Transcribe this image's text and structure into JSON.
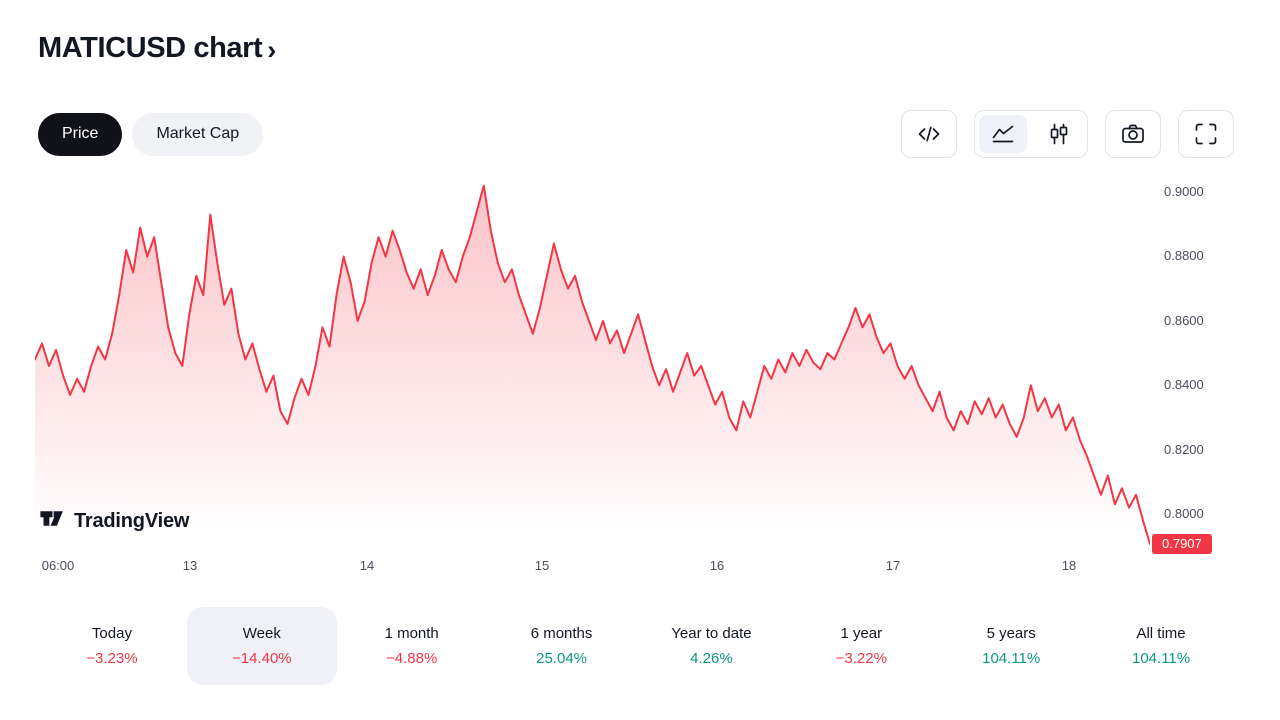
{
  "header": {
    "title": "MATICUSD chart",
    "chevron": "›"
  },
  "toolbar": {
    "price_label": "Price",
    "market_cap_label": "Market Cap",
    "icons": [
      "code-icon",
      "area-chart-icon",
      "candlestick-icon",
      "camera-icon",
      "fullscreen-icon"
    ],
    "selected_chart_type": "area"
  },
  "watermark": {
    "brand": "TradingView"
  },
  "chart_data": {
    "type": "area",
    "title": "MATICUSD",
    "xlabel": "",
    "ylabel": "",
    "grid": false,
    "legend": false,
    "line_color": "#f23645",
    "fill_color": "#f23645",
    "up_color": "#089981",
    "down_color": "#f23645",
    "ylim": [
      0.7873,
      0.9053
    ],
    "y_ticks": [
      "0.9000",
      "0.8800",
      "0.8600",
      "0.8400",
      "0.8200",
      "0.8000"
    ],
    "y_tick_values": [
      0.9,
      0.88,
      0.86,
      0.84,
      0.82,
      0.8
    ],
    "x_ticks": [
      "06:00",
      "13",
      "14",
      "15",
      "16",
      "17",
      "18"
    ],
    "last_price": 0.7907,
    "last_price_label": "0.7907",
    "prices": [
      0.848,
      0.853,
      0.846,
      0.851,
      0.843,
      0.837,
      0.842,
      0.838,
      0.846,
      0.852,
      0.848,
      0.856,
      0.868,
      0.882,
      0.875,
      0.889,
      0.88,
      0.886,
      0.872,
      0.858,
      0.85,
      0.846,
      0.862,
      0.874,
      0.868,
      0.893,
      0.878,
      0.865,
      0.87,
      0.856,
      0.848,
      0.853,
      0.845,
      0.838,
      0.843,
      0.832,
      0.828,
      0.836,
      0.842,
      0.837,
      0.846,
      0.858,
      0.852,
      0.868,
      0.88,
      0.872,
      0.86,
      0.866,
      0.878,
      0.886,
      0.88,
      0.888,
      0.882,
      0.875,
      0.87,
      0.876,
      0.868,
      0.874,
      0.882,
      0.876,
      0.872,
      0.88,
      0.886,
      0.894,
      0.902,
      0.888,
      0.878,
      0.872,
      0.876,
      0.868,
      0.862,
      0.856,
      0.864,
      0.874,
      0.884,
      0.876,
      0.87,
      0.874,
      0.866,
      0.86,
      0.854,
      0.86,
      0.853,
      0.857,
      0.85,
      0.856,
      0.862,
      0.854,
      0.846,
      0.84,
      0.845,
      0.838,
      0.844,
      0.85,
      0.843,
      0.846,
      0.84,
      0.834,
      0.838,
      0.83,
      0.826,
      0.835,
      0.83,
      0.838,
      0.846,
      0.842,
      0.848,
      0.844,
      0.85,
      0.846,
      0.851,
      0.847,
      0.845,
      0.85,
      0.848,
      0.853,
      0.858,
      0.864,
      0.858,
      0.862,
      0.855,
      0.85,
      0.853,
      0.846,
      0.842,
      0.846,
      0.84,
      0.836,
      0.832,
      0.838,
      0.83,
      0.826,
      0.832,
      0.828,
      0.835,
      0.831,
      0.836,
      0.83,
      0.834,
      0.828,
      0.824,
      0.83,
      0.84,
      0.832,
      0.836,
      0.83,
      0.834,
      0.826,
      0.83,
      0.823,
      0.818,
      0.812,
      0.806,
      0.812,
      0.803,
      0.808,
      0.802,
      0.806,
      0.798,
      0.7907
    ]
  },
  "ranges": [
    {
      "label": "Today",
      "change": "−3.23%",
      "dir": "down",
      "selected": false
    },
    {
      "label": "Week",
      "change": "−14.40%",
      "dir": "down",
      "selected": true
    },
    {
      "label": "1 month",
      "change": "−4.88%",
      "dir": "down",
      "selected": false
    },
    {
      "label": "6 months",
      "change": "25.04%",
      "dir": "up",
      "selected": false
    },
    {
      "label": "Year to date",
      "change": "4.26%",
      "dir": "up",
      "selected": false
    },
    {
      "label": "1 year",
      "change": "−3.22%",
      "dir": "down",
      "selected": false
    },
    {
      "label": "5 years",
      "change": "104.11%",
      "dir": "up",
      "selected": false
    },
    {
      "label": "All time",
      "change": "104.11%",
      "dir": "up",
      "selected": false
    }
  ],
  "colors": {
    "accent_red": "#f23645",
    "up_green": "#089981",
    "text": "#131722",
    "muted_text": "#4a4e59",
    "pill_dark_bg": "#101218",
    "pill_light_bg": "#f0f2f5",
    "selected_range_bg": "#f0f1f7",
    "button_border": "#e0e3eb"
  }
}
